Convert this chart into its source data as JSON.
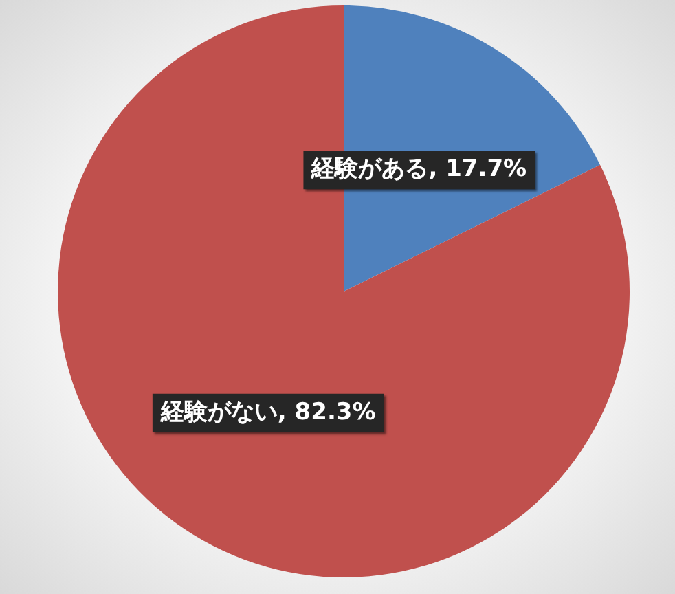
{
  "chart_data": {
    "type": "pie",
    "categories": [
      "経験がある",
      "経験がない"
    ],
    "values": [
      17.7,
      82.3
    ],
    "colors": [
      "#4f81bd",
      "#c0504d"
    ],
    "value_labels": [
      "17.7%",
      "82.3%"
    ],
    "legend": false
  }
}
